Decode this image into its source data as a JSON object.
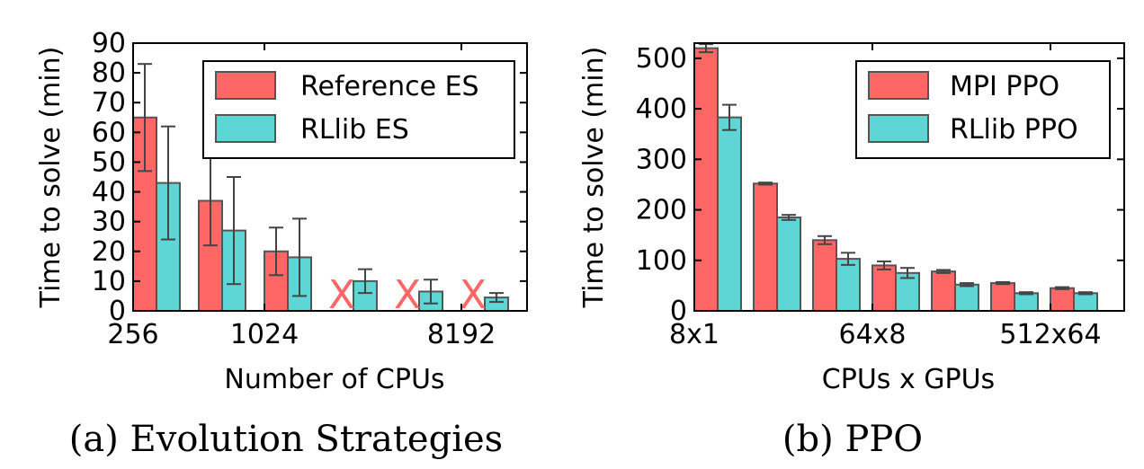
{
  "colors": {
    "red": "#ff6666",
    "cyan": "#5ed6d6",
    "edge": "#555555",
    "err": "#444444",
    "marker": "#ff6666"
  },
  "chart_data": [
    {
      "type": "bar",
      "caption": "(a) Evolution Strategies",
      "xlabel": "Number of CPUs",
      "ylabel": "Time to solve (min)",
      "ylim": [
        0,
        90
      ],
      "yticks": [
        0,
        10,
        20,
        30,
        40,
        50,
        60,
        70,
        80,
        90
      ],
      "x_tick_labels": [
        {
          "group": 0,
          "text": "256"
        },
        {
          "group": 2,
          "text": "1024"
        },
        {
          "group": 5,
          "text": "8192"
        }
      ],
      "legend": {
        "loc": "upper-right"
      },
      "missing_marker": "X",
      "series": [
        {
          "name": "Reference ES",
          "color": "red",
          "values": [
            65,
            37,
            20,
            null,
            null,
            null
          ],
          "errors": [
            18,
            15,
            8,
            null,
            null,
            null
          ]
        },
        {
          "name": "RLlib ES",
          "color": "cyan",
          "values": [
            43,
            27,
            18,
            10,
            6.5,
            4.5
          ],
          "errors": [
            19,
            18,
            13,
            4,
            4,
            1.5
          ]
        }
      ]
    },
    {
      "type": "bar",
      "caption": "(b) PPO",
      "xlabel": "CPUs x GPUs",
      "ylabel": "Time to solve (min)",
      "ylim": [
        0,
        530
      ],
      "yticks": [
        0,
        100,
        200,
        300,
        400,
        500
      ],
      "x_tick_labels": [
        {
          "group": 0,
          "text": "8x1"
        },
        {
          "group": 3,
          "text": "64x8"
        },
        {
          "group": 6,
          "text": "512x64"
        }
      ],
      "legend": {
        "loc": "upper-right"
      },
      "series": [
        {
          "name": "MPI PPO",
          "color": "red",
          "values": [
            520,
            252,
            140,
            90,
            78,
            55,
            45
          ],
          "errors": [
            8,
            2,
            8,
            8,
            3,
            2,
            2
          ]
        },
        {
          "name": "RLlib PPO",
          "color": "cyan",
          "values": [
            383,
            185,
            103,
            75,
            52,
            35,
            35
          ],
          "errors": [
            25,
            5,
            12,
            10,
            3,
            2,
            2
          ]
        }
      ]
    }
  ]
}
